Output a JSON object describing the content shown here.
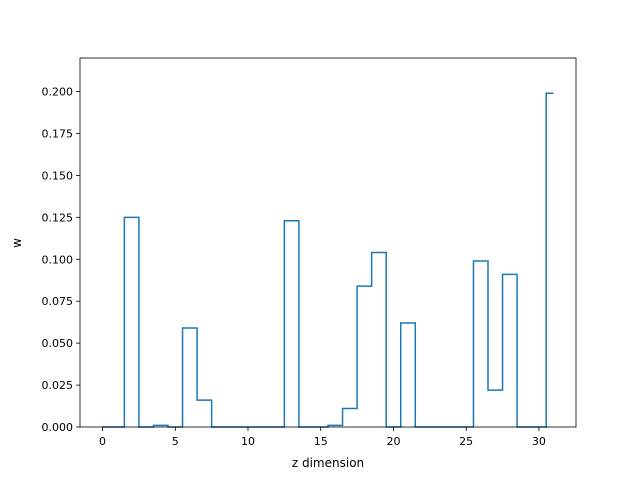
{
  "chart_data": {
    "type": "line",
    "style": "step-mid",
    "title": "",
    "xlabel": "z dimension",
    "ylabel": "w",
    "xlim": [
      -1.55,
      32.55
    ],
    "ylim": [
      0,
      0.22
    ],
    "xticks": [
      0,
      5,
      10,
      15,
      20,
      25,
      30
    ],
    "xtick_labels": [
      "0",
      "5",
      "10",
      "15",
      "20",
      "25",
      "30"
    ],
    "yticks": [
      0.0,
      0.025,
      0.05,
      0.075,
      0.1,
      0.125,
      0.15,
      0.175,
      0.2
    ],
    "ytick_labels": [
      "0.000",
      "0.025",
      "0.050",
      "0.075",
      "0.100",
      "0.125",
      "0.150",
      "0.175",
      "0.200"
    ],
    "grid": false,
    "legend": "none",
    "series": [
      {
        "color": "#1f77b4",
        "x": [
          0,
          1,
          2,
          3,
          4,
          5,
          6,
          7,
          8,
          9,
          10,
          11,
          12,
          13,
          14,
          15,
          16,
          17,
          18,
          19,
          20,
          21,
          22,
          23,
          24,
          25,
          26,
          27,
          28,
          29,
          30,
          31
        ],
        "values": [
          0.0,
          0.0,
          0.125,
          0.0,
          0.001,
          0.0,
          0.059,
          0.016,
          0.0,
          0.0,
          0.0,
          0.0,
          0.0,
          0.123,
          0.0,
          0.0,
          0.001,
          0.011,
          0.084,
          0.104,
          0.0,
          0.062,
          0.0,
          0.0,
          0.0,
          0.0,
          0.099,
          0.022,
          0.091,
          0.0,
          0.0,
          0.199
        ]
      }
    ]
  }
}
